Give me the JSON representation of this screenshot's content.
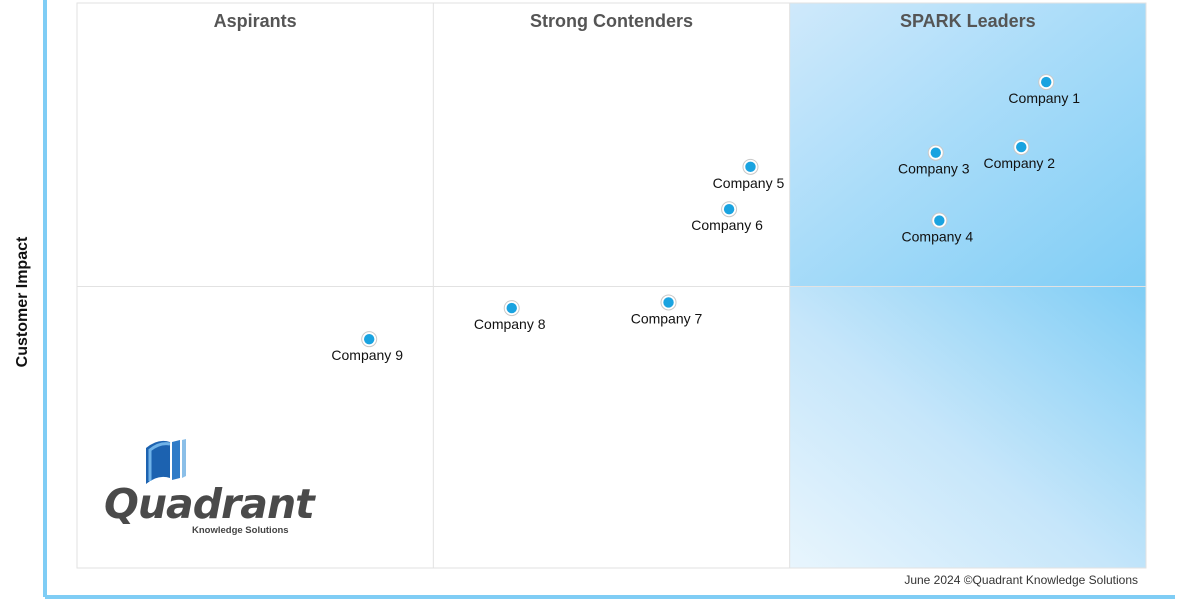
{
  "chart_data": {
    "type": "scatter",
    "title": "",
    "xlabel": "",
    "ylabel": "Customer Impact",
    "xlim": [
      0,
      3
    ],
    "ylim": [
      0,
      2
    ],
    "grid": true,
    "quadrants": [
      "Aspirants",
      "Strong Contenders",
      "SPARK Leaders"
    ],
    "highlight_color": "#7fcdf5",
    "point_color": "#1aa3e0",
    "points": [
      {
        "label": "Company 1",
        "x": 2.72,
        "y": 1.72
      },
      {
        "label": "Company 2",
        "x": 2.65,
        "y": 1.49
      },
      {
        "label": "Company 3",
        "x": 2.41,
        "y": 1.47
      },
      {
        "label": "Company 4",
        "x": 2.42,
        "y": 1.23
      },
      {
        "label": "Company 5",
        "x": 1.89,
        "y": 1.42
      },
      {
        "label": "Company 6",
        "x": 1.83,
        "y": 1.27
      },
      {
        "label": "Company 7",
        "x": 1.66,
        "y": 0.94
      },
      {
        "label": "Company 8",
        "x": 1.22,
        "y": 0.92
      },
      {
        "label": "Company 9",
        "x": 0.82,
        "y": 0.81
      }
    ]
  },
  "logo": {
    "name": "Quadrant",
    "subtitle": "Knowledge Solutions"
  },
  "footer": "June 2024 ©Quadrant Knowledge Solutions"
}
